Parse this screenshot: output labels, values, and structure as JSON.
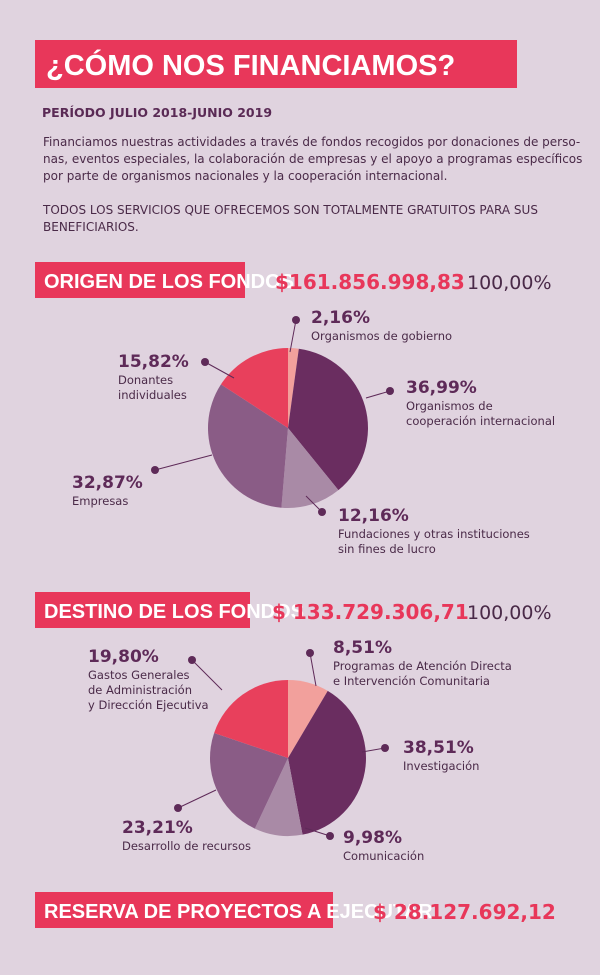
{
  "header": {
    "title": "¿CÓMO NOS FINANCIAMOS?",
    "period": "PERÍODO JULIO 2018-JUNIO 2019",
    "paragraphs": [
      [
        "Financiamos nuestras actividades a través de fondos recogidos por donaciones de perso-",
        "nas, eventos especiales, la colaboración de empresas y el apoyo a programas específicos",
        "por parte de organismos nacionales y la cooperación internacional."
      ],
      [
        "TODOS LOS SERVICIOS QUE OFRECEMOS SON TOTALMENTE GRATUITOS PARA SUS",
        "BENEFICIARIOS."
      ]
    ]
  },
  "chart_data": [
    {
      "type": "pie",
      "title": "ORIGEN DE LOS FONDOS",
      "total": "$161.856.998,83",
      "total_percent": "100,00%",
      "categories": [
        "Organismos de gobierno",
        "Organismos de\ncooperación internacional",
        "Fundaciones y otras instituciones\nsin fines de lucro",
        "Empresas",
        "Donantes\nindividuales"
      ],
      "values": [
        2.16,
        36.99,
        12.16,
        32.87,
        15.82
      ],
      "value_labels": [
        "2,16%",
        "36,99%",
        "12,16%",
        "32,87%",
        "15,82%"
      ],
      "colors": [
        "#f2a09c",
        "#6a2d60",
        "#a98aa6",
        "#8a5c86",
        "#e8405c"
      ]
    },
    {
      "type": "pie",
      "title": "DESTINO DE LOS FONDOS",
      "total": "$ 133.729.306,71",
      "total_percent": "100,00%",
      "categories": [
        "Programas de Atención Directa\ne Intervención Comunitaria",
        "Investigación",
        "Comunicación",
        "Desarrollo de recursos",
        "Gastos Generales\nde Administración\ny Dirección Ejecutiva"
      ],
      "values": [
        8.51,
        38.51,
        9.98,
        23.21,
        19.8
      ],
      "value_labels": [
        "8,51%",
        "38,51%",
        "9,98%",
        "23,21%",
        "19,80%"
      ],
      "colors": [
        "#f2a09c",
        "#6a2d60",
        "#a98aa6",
        "#8a5c86",
        "#e8405c"
      ]
    }
  ],
  "reserve": {
    "title": "RESERVA DE PROYECTOS A EJECUTAR",
    "amount": "$ 28.127.692,12"
  }
}
